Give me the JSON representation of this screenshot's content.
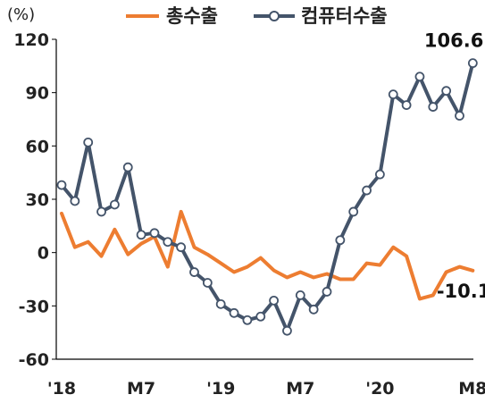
{
  "chart_data": {
    "type": "line",
    "unit_label": "(%)",
    "ylim": [
      -60,
      120
    ],
    "y_ticks": [
      "120",
      "90",
      "60",
      "30",
      "0",
      "-30",
      "-60"
    ],
    "x_ticks": [
      "'18",
      "M7",
      "'19",
      "M7",
      "'20",
      "M8"
    ],
    "grid": false,
    "legend_position": "top",
    "series": [
      {
        "name": "총수출",
        "color": "#ED7D31",
        "marker": "none",
        "values": [
          22,
          3,
          6,
          -2,
          13,
          -1,
          5,
          9,
          -8,
          23,
          3,
          -1,
          -6,
          -11,
          -8,
          -3,
          -10,
          -14,
          -11,
          -14,
          -12,
          -15,
          -15,
          -6,
          -7,
          3,
          -2,
          -26,
          -24,
          -11,
          -8,
          -10.1
        ]
      },
      {
        "name": "컴퓨터수출",
        "color": "#44546A",
        "marker": "circle",
        "values": [
          38,
          29,
          62,
          23,
          27,
          48,
          10,
          11,
          6,
          3,
          -11,
          -17,
          -29,
          -34,
          -38,
          -36,
          -27,
          -44,
          -24,
          -32,
          -22,
          7,
          23,
          35,
          44,
          89,
          83,
          99,
          82,
          91,
          77,
          106.6
        ]
      }
    ],
    "annotations": [
      {
        "text": "106.6",
        "series": 1,
        "index": 31
      },
      {
        "text": "-10.1",
        "series": 0,
        "index": 31
      }
    ]
  }
}
